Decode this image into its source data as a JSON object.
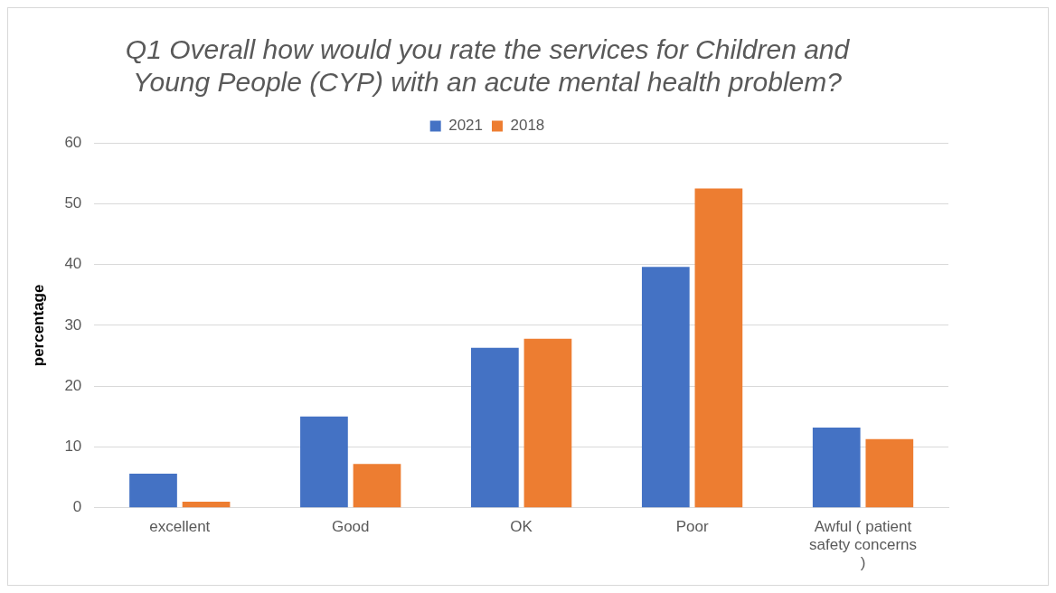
{
  "chart_data": {
    "type": "bar",
    "title": "Q1 Overall how would you rate the services for Children and Young People (CYP) with an acute mental health problem?",
    "ylabel": "percentage",
    "categories": [
      "excellent",
      "Good",
      "OK",
      "Poor",
      "Awful ( patient safety concerns )"
    ],
    "series": [
      {
        "name": "2021",
        "color": "#4472c4",
        "values": [
          5.6,
          15.0,
          26.3,
          39.6,
          13.2
        ]
      },
      {
        "name": "2018",
        "color": "#ed7d31",
        "values": [
          1.0,
          7.2,
          27.8,
          52.5,
          11.3
        ]
      }
    ],
    "ylim": [
      0,
      60
    ],
    "yticks": [
      0,
      10,
      20,
      30,
      40,
      50,
      60
    ],
    "grid": "y",
    "legend": "top"
  }
}
